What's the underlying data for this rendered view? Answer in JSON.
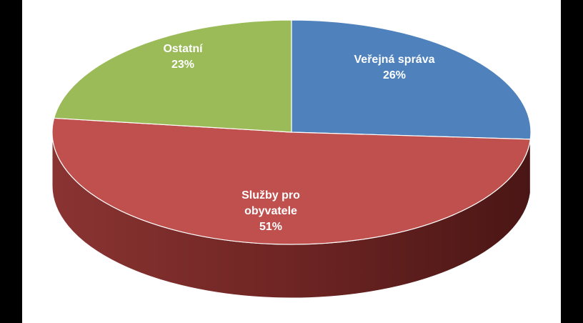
{
  "chart_data": {
    "type": "pie",
    "style": "3d",
    "categories": [
      "Veřejná správa",
      "Služby pro obyvatele",
      "Ostatní"
    ],
    "values": [
      26,
      51,
      23
    ],
    "labels": [
      {
        "name": "Veřejná správa",
        "value": "26%"
      },
      {
        "name": "Služby pro obyvatele",
        "value": "51%"
      },
      {
        "name": "Ostatní",
        "value": "23%"
      }
    ],
    "colors": [
      "#4F81BD",
      "#C0504D",
      "#9BBB59"
    ],
    "side_colors": [
      "#2E4D73",
      "#7A2A28",
      "#5E7536"
    ],
    "title": "",
    "legend": "none"
  }
}
